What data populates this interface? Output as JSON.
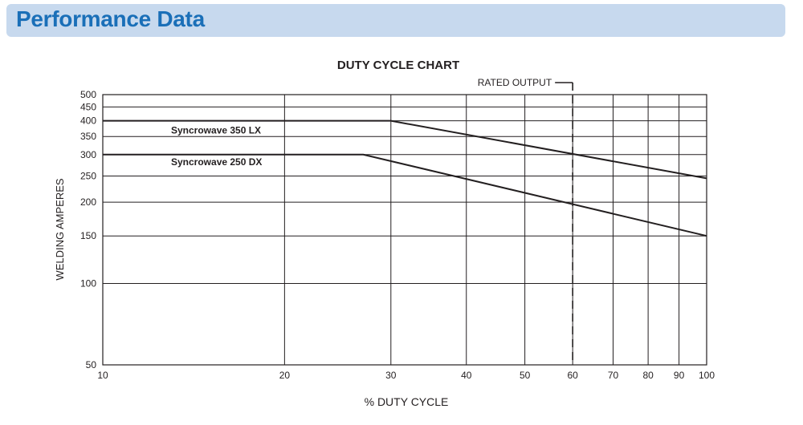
{
  "header": {
    "title": "Performance Data",
    "background_color": "#c7d9ee",
    "title_color": "#1a6fb8"
  },
  "chart_data": {
    "type": "line",
    "title": "DUTY CYCLE CHART",
    "xlabel": "% DUTY CYCLE",
    "ylabel": "WELDING AMPERES",
    "x_scale": "log",
    "y_scale": "log",
    "xlim": [
      10,
      100
    ],
    "ylim": [
      50,
      500
    ],
    "x_ticks": [
      10,
      20,
      30,
      40,
      50,
      60,
      70,
      80,
      90,
      100
    ],
    "y_ticks": [
      50,
      100,
      150,
      200,
      250,
      300,
      350,
      400,
      450,
      500
    ],
    "grid": true,
    "series": [
      {
        "name": "Syncrowave 350 LX",
        "x": [
          10,
          30,
          100
        ],
        "y": [
          400,
          400,
          245
        ]
      },
      {
        "name": "Syncrowave 250 DX",
        "x": [
          10,
          27,
          100
        ],
        "y": [
          300,
          300,
          150
        ]
      }
    ],
    "annotations": [
      {
        "text": "RATED OUTPUT",
        "x": 60,
        "style": "dashed-vertical"
      }
    ]
  }
}
